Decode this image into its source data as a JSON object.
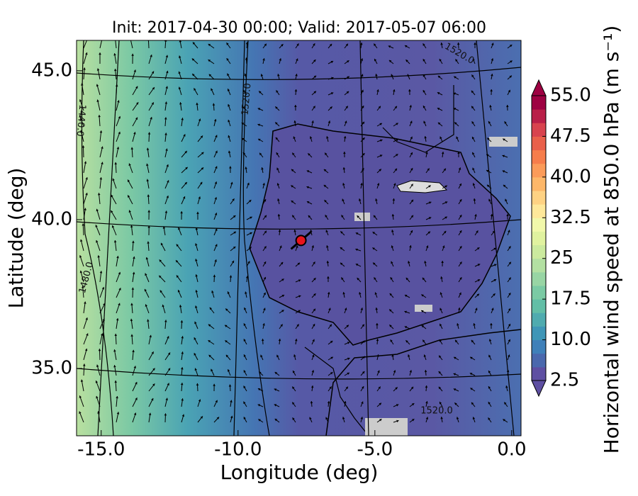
{
  "chart_data": {
    "type": "map",
    "title": "Init: 2017-04-30 00:00; Valid: 2017-05-07 06:00",
    "xlabel": "Longitude (deg)",
    "ylabel": "Latitude (deg)",
    "xlim": [
      -15.9,
      0.34
    ],
    "ylim": [
      32.74,
      46.02
    ],
    "xticks": [
      {
        "value": -15,
        "label": "-15.0"
      },
      {
        "value": -10,
        "label": "-10.0"
      },
      {
        "value": -5,
        "label": "-5.0"
      },
      {
        "value": 0,
        "label": "0.0"
      }
    ],
    "yticks": [
      {
        "value": 35,
        "label": "35.0"
      },
      {
        "value": 40,
        "label": "40.0"
      },
      {
        "value": 45,
        "label": "45.0"
      }
    ],
    "marker": {
      "lon": -7.7,
      "lat": 39.3,
      "color": "#e8141c"
    },
    "contour_labels": [
      "1520.0",
      "1520.0",
      "1440.0",
      "1480.0",
      "1520.0"
    ],
    "colorbar": {
      "label": "Horizontal wind speed at 850.0 hPa (m s⁻¹)",
      "clim": [
        2.5,
        55
      ],
      "ticks": [
        2.5,
        {
          "value": 10,
          "label": "10.0"
        },
        17.5,
        25,
        {
          "value": 25,
          "label": "25.0"
        },
        32.5,
        {
          "value": 40,
          "label": "40.0"
        },
        47.5,
        {
          "value": 55,
          "label": "55.0"
        }
      ],
      "colors": [
        "#5e4fa2",
        "#4a68ad",
        "#3f80b9",
        "#3f96b7",
        "#4fabaf",
        "#62bea6",
        "#7bcaa4",
        "#98d5a4",
        "#b3e0a2",
        "#cbea9e",
        "#e0f29f",
        "#f1f8aa",
        "#fee89a",
        "#fed283",
        "#fdb769",
        "#fb9b59",
        "#f67d4b",
        "#e9604a",
        "#d8434e",
        "#b91f48",
        "#9e0142"
      ]
    }
  }
}
